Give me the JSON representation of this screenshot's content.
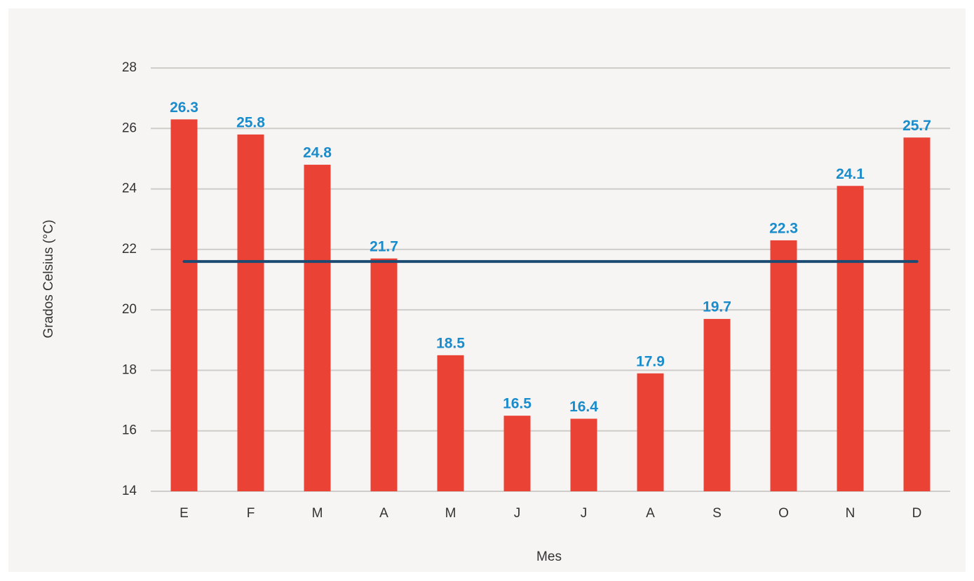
{
  "chart_data": {
    "type": "bar",
    "x_label": "Mes",
    "y_label": "Grados Celsius (°C)",
    "categories": [
      "E",
      "F",
      "M",
      "A",
      "M",
      "J",
      "J",
      "A",
      "S",
      "O",
      "N",
      "D"
    ],
    "values": [
      26.3,
      25.8,
      24.8,
      21.7,
      18.5,
      16.5,
      16.4,
      17.9,
      19.7,
      22.3,
      24.1,
      25.7
    ],
    "color": "#ea4335",
    "value_label_color": "#1a8ccc",
    "average_line": {
      "value": 21.6,
      "color": "#1b4a72"
    },
    "ylim": [
      14,
      28
    ],
    "yticks": [
      14,
      16,
      18,
      20,
      22,
      24,
      26,
      28
    ],
    "grid": true
  }
}
